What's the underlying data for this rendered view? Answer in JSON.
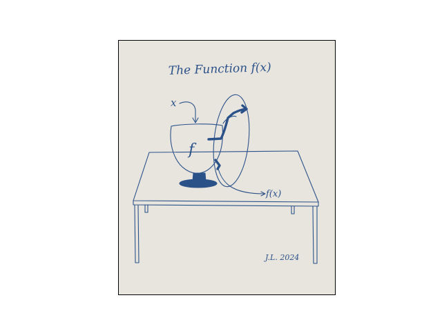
{
  "drawing": {
    "title": "The Function f(x)",
    "input_label": "x",
    "machine_label": "f",
    "output_label": "f(x)",
    "signature": "J.L. 2024"
  },
  "colors": {
    "paper": "#e8e5de",
    "ink": "#2b5189",
    "frame": "#000000"
  }
}
